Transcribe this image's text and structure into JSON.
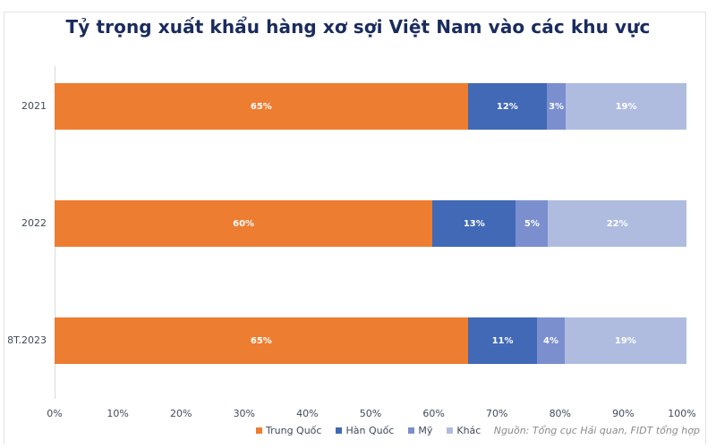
{
  "chart_data": {
    "type": "bar",
    "orientation": "horizontal",
    "stacked": true,
    "percent_stacked": true,
    "title": "Tỷ trọng xuất khẩu hàng xơ sợi Việt Nam vào các khu vực",
    "xlabel": "",
    "ylabel": "",
    "xlim": [
      0,
      100
    ],
    "grid": false,
    "legend_position": "bottom",
    "categories": [
      "2021",
      "2022",
      "8T.2023"
    ],
    "series": [
      {
        "name": "Trung Quốc",
        "color": "#ed7d31",
        "values": [
          65,
          60,
          65
        ],
        "labels": [
          "65%",
          "60%",
          "65%"
        ]
      },
      {
        "name": "Hàn Quốc",
        "color": "#4169b5",
        "values": [
          12,
          13,
          11
        ],
        "labels": [
          "12%",
          "13%",
          "11%"
        ]
      },
      {
        "name": "Mỹ",
        "color": "#7b8fcf",
        "values": [
          3,
          5,
          4
        ],
        "labels": [
          "3%",
          "5%",
          "4%"
        ]
      },
      {
        "name": "Khác",
        "color": "#b0bcdf",
        "values": [
          19,
          22,
          19
        ],
        "labels": [
          "19%",
          "22%",
          "19%"
        ]
      }
    ],
    "x_ticks": [
      "0%",
      "10%",
      "20%",
      "30%",
      "40%",
      "50%",
      "60%",
      "70%",
      "80%",
      "90%",
      "100%"
    ],
    "source": "Nguồn: Tổng cục Hải quan, FIDT tổng hợp"
  },
  "title": "Tỷ trọng xuất khẩu hàng xơ sợi Việt Nam vào các khu vực",
  "rows": [
    {
      "label": "2021",
      "segments": [
        {
          "width": 65.4,
          "text": "65%",
          "color": "#ed7d31"
        },
        {
          "width": 12.5,
          "text": "12%",
          "color": "#4169b5"
        },
        {
          "width": 3.0,
          "text": "3%",
          "color": "#7b8fcf"
        },
        {
          "width": 19.1,
          "text": "19%",
          "color": "#b0bcdf"
        }
      ]
    },
    {
      "label": "2022",
      "segments": [
        {
          "width": 59.8,
          "text": "60%",
          "color": "#ed7d31"
        },
        {
          "width": 13.2,
          "text": "13%",
          "color": "#4169b5"
        },
        {
          "width": 5.1,
          "text": "5%",
          "color": "#7b8fcf"
        },
        {
          "width": 21.9,
          "text": "22%",
          "color": "#b0bcdf"
        }
      ]
    },
    {
      "label": "8T.2023",
      "segments": [
        {
          "width": 65.4,
          "text": "65%",
          "color": "#ed7d31"
        },
        {
          "width": 11.0,
          "text": "11%",
          "color": "#4169b5"
        },
        {
          "width": 4.3,
          "text": "4%",
          "color": "#7b8fcf"
        },
        {
          "width": 19.3,
          "text": "19%",
          "color": "#b0bcdf"
        }
      ]
    }
  ],
  "x_ticks": [
    "0%",
    "10%",
    "20%",
    "30%",
    "40%",
    "50%",
    "60%",
    "70%",
    "80%",
    "90%",
    "100%"
  ],
  "legend": [
    {
      "label": "Trung Quốc",
      "color": "#ed7d31"
    },
    {
      "label": "Hàn Quốc",
      "color": "#4169b5"
    },
    {
      "label": "Mỹ",
      "color": "#7b8fcf"
    },
    {
      "label": "Khác",
      "color": "#b0bcdf"
    }
  ],
  "source": "Nguồn: Tổng cục Hải quan, FIDT tổng hợp"
}
